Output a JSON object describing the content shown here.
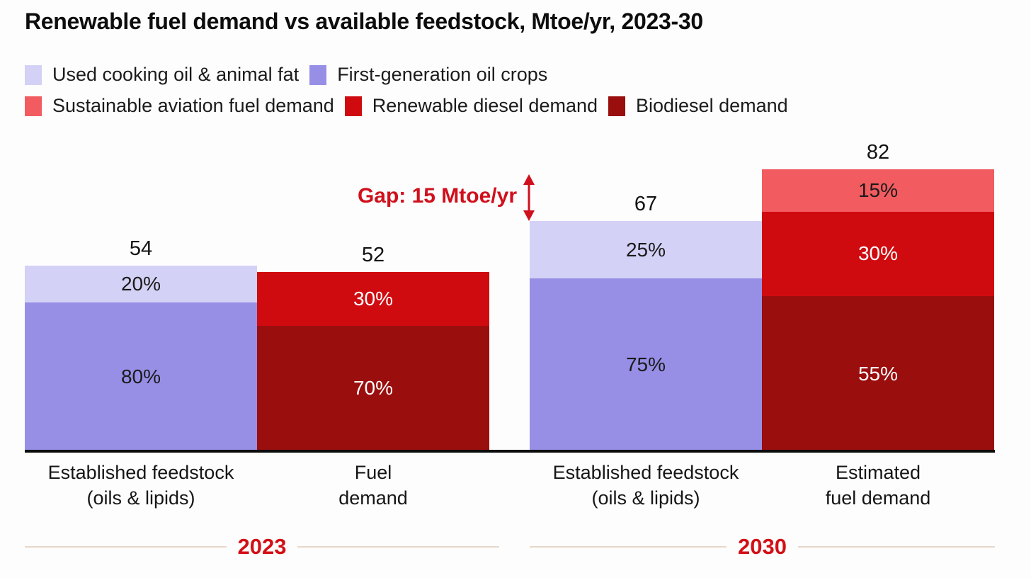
{
  "chart_data": {
    "type": "bar",
    "stacked": true,
    "units": "Mtoe/yr",
    "title": "Renewable fuel demand vs available feedstock, Mtoe/yr, 2023-30",
    "series_colors": {
      "Used cooking oil & animal fat": "#d3d1f5",
      "First-generation oil crops": "#978fe6",
      "Sustainable aviation fuel demand": "#f25c60",
      "Renewable diesel demand": "#d00b10",
      "Biodiesel demand": "#9a0e0e"
    },
    "legend_rows": [
      [
        "Used cooking oil & animal fat",
        "First-generation oil crops"
      ],
      [
        "Sustainable aviation fuel demand",
        "Renewable diesel demand",
        "Biodiesel demand"
      ]
    ],
    "groups": [
      {
        "year": "2023",
        "bars": [
          {
            "label_lines": [
              "Established feedstock",
              "(oils & lipids)"
            ],
            "total": 54,
            "segments": [
              {
                "series": "Used cooking oil & animal fat",
                "pct": 20,
                "pct_label": "20%",
                "label_color": "#1a1a1a"
              },
              {
                "series": "First-generation oil crops",
                "pct": 80,
                "pct_label": "80%",
                "label_color": "#1a1a1a"
              }
            ]
          },
          {
            "label_lines": [
              "Fuel",
              "demand"
            ],
            "total": 52,
            "segments": [
              {
                "series": "Renewable diesel demand",
                "pct": 30,
                "pct_label": "30%",
                "label_color": "#ffffff"
              },
              {
                "series": "Biodiesel demand",
                "pct": 70,
                "pct_label": "70%",
                "label_color": "#ffffff"
              }
            ]
          }
        ]
      },
      {
        "year": "2030",
        "bars": [
          {
            "label_lines": [
              "Established feedstock",
              "(oils & lipids)"
            ],
            "total": 67,
            "segments": [
              {
                "series": "Used cooking oil & animal fat",
                "pct": 25,
                "pct_label": "25%",
                "label_color": "#1a1a1a"
              },
              {
                "series": "First-generation oil crops",
                "pct": 75,
                "pct_label": "75%",
                "label_color": "#1a1a1a"
              }
            ]
          },
          {
            "label_lines": [
              "Estimated",
              "fuel demand"
            ],
            "total": 82,
            "segments": [
              {
                "series": "Sustainable aviation fuel demand",
                "pct": 15,
                "pct_label": "15%",
                "label_color": "#1a1a1a"
              },
              {
                "series": "Renewable diesel demand",
                "pct": 30,
                "pct_label": "30%",
                "label_color": "#ffffff"
              },
              {
                "series": "Biodiesel demand",
                "pct": 55,
                "pct_label": "55%",
                "label_color": "#ffffff"
              }
            ]
          }
        ]
      }
    ],
    "annotation": {
      "text": "Gap: 15 Mtoe/yr",
      "value": 15
    }
  }
}
